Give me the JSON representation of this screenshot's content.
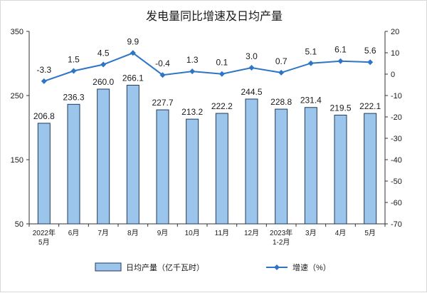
{
  "chart_data": {
    "type": "bar+line",
    "title": "发电量同比增速及日均产量",
    "categories": [
      "2022年\n5月",
      "6月",
      "7月",
      "8月",
      "9月",
      "10月",
      "11月",
      "12月",
      "2023年\n1-2月",
      "3月",
      "4月",
      "5月"
    ],
    "series": [
      {
        "name": "日均产量（亿千瓦时）",
        "type": "bar",
        "axis": "left",
        "values": [
          206.8,
          236.3,
          260.0,
          266.1,
          227.7,
          213.2,
          222.2,
          244.5,
          228.8,
          231.4,
          219.5,
          222.1
        ],
        "labels": [
          "206.8",
          "236.3",
          "260.0",
          "266.1",
          "227.7",
          "213.2",
          "222.2",
          "244.5",
          "228.8",
          "231.4",
          "219.5",
          "222.1"
        ]
      },
      {
        "name": "增速（%）",
        "type": "line",
        "axis": "right",
        "values": [
          -3.3,
          1.5,
          4.5,
          9.9,
          -0.4,
          1.3,
          0.1,
          3.0,
          0.7,
          5.1,
          6.1,
          5.6
        ],
        "labels": [
          "-3.3",
          "1.5",
          "4.5",
          "9.9",
          "-0.4",
          "1.3",
          "0.1",
          "3.0",
          "0.7",
          "5.1",
          "6.1",
          "5.6"
        ]
      }
    ],
    "y_left": {
      "min": 50,
      "max": 350,
      "ticks": [
        "50",
        "150",
        "250",
        "350"
      ]
    },
    "y_right": {
      "min": -70,
      "max": 20,
      "ticks": [
        "20",
        "10",
        "0",
        "-10",
        "-20",
        "-30",
        "-40",
        "-50",
        "-60",
        "-70"
      ]
    },
    "grid": false,
    "legend_position": "bottom",
    "colors": {
      "bar_fill": "#9cc5ec",
      "bar_stroke": "#1f3a5f",
      "line": "#2e75c5",
      "axis": "#333333"
    }
  }
}
